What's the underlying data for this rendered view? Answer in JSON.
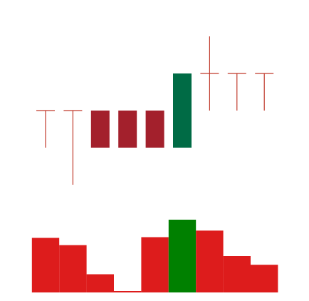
{
  "colors": {
    "bearish_candle": "#a3202c",
    "bullish_candle": "#006b45",
    "wick": "#c0392b",
    "volume_down": "#dd1c1c",
    "volume_up": "#008000",
    "background": "#ffffff"
  },
  "chart_data": [
    {
      "type": "candlestick",
      "title": "",
      "xlabel": "",
      "ylabel": "",
      "axes_visible": false,
      "grid": false,
      "ylim": [
        0,
        100
      ],
      "candles": [
        {
          "index": 1,
          "open": 50,
          "high": 50,
          "low": 30,
          "close": 50,
          "direction": "down"
        },
        {
          "index": 2,
          "open": 50,
          "high": 50,
          "low": 10,
          "close": 50,
          "direction": "down"
        },
        {
          "index": 3,
          "open": 50,
          "high": 50,
          "low": 30,
          "close": 30,
          "direction": "down"
        },
        {
          "index": 4,
          "open": 50,
          "high": 50,
          "low": 30,
          "close": 30,
          "direction": "down"
        },
        {
          "index": 5,
          "open": 50,
          "high": 50,
          "low": 30,
          "close": 30,
          "direction": "down"
        },
        {
          "index": 6,
          "open": 30,
          "high": 70,
          "low": 30,
          "close": 70,
          "direction": "up"
        },
        {
          "index": 7,
          "open": 70,
          "high": 90,
          "low": 50,
          "close": 70,
          "direction": "down"
        },
        {
          "index": 8,
          "open": 70,
          "high": 70,
          "low": 50,
          "close": 70,
          "direction": "down"
        },
        {
          "index": 9,
          "open": 70,
          "high": 70,
          "low": 50,
          "close": 70,
          "direction": "down"
        }
      ]
    },
    {
      "type": "bar",
      "title": "",
      "axes_visible": false,
      "grid": false,
      "ylim": [
        0,
        100
      ],
      "categories": [
        1,
        2,
        3,
        4,
        5,
        6,
        7,
        8,
        9
      ],
      "values": [
        75,
        65,
        25,
        2,
        76,
        100,
        85,
        50,
        38
      ],
      "directions": [
        "down",
        "down",
        "down",
        "down",
        "down",
        "up",
        "down",
        "down",
        "down"
      ]
    }
  ]
}
